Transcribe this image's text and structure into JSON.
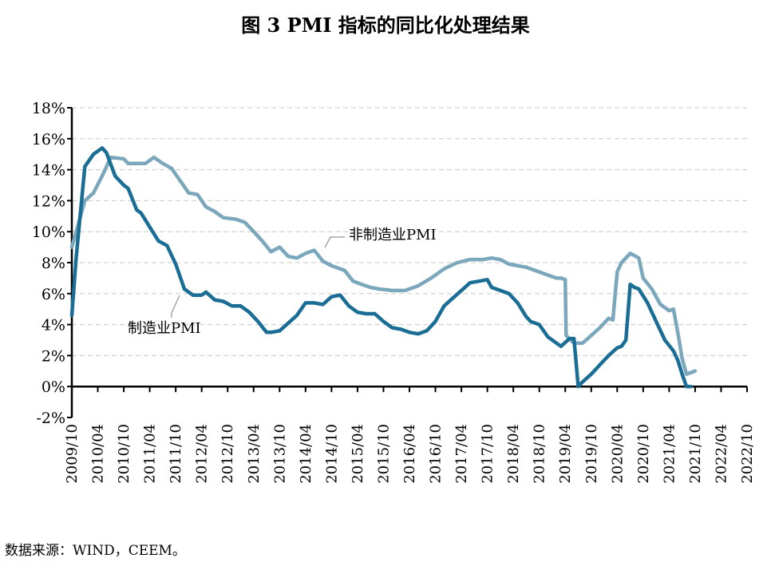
{
  "chart_data": {
    "type": "line",
    "title": "图 3 PMI 指标的同比化处理结果",
    "source": "数据来源：WIND，CEEM。",
    "ylim": [
      -2,
      18
    ],
    "yticks": [
      -2,
      0,
      2,
      4,
      6,
      8,
      10,
      12,
      14,
      16,
      18
    ],
    "ytick_labels": [
      "-2%",
      "0%",
      "2%",
      "4%",
      "6%",
      "8%",
      "10%",
      "12%",
      "14%",
      "16%",
      "18%"
    ],
    "x_start": "2009/10",
    "x_end": "2022/10",
    "xtick_labels": [
      "2009/10",
      "2010/04",
      "2010/10",
      "2011/04",
      "2011/10",
      "2012/04",
      "2012/10",
      "2013/04",
      "2013/10",
      "2014/04",
      "2014/10",
      "2015/04",
      "2015/10",
      "2016/04",
      "2016/10",
      "2017/04",
      "2017/10",
      "2018/04",
      "2018/10",
      "2019/04",
      "2019/10",
      "2020/04",
      "2020/10",
      "2021/04",
      "2021/10",
      "2022/04",
      "2022/10"
    ],
    "grid": true,
    "series": [
      {
        "name": "非制造业PMI",
        "color": "#7BA7BC",
        "label": "非制造业PMI",
        "points": [
          [
            0,
            9.0
          ],
          [
            3,
            12.0
          ],
          [
            5,
            12.5
          ],
          [
            7,
            13.6
          ],
          [
            9,
            14.8
          ],
          [
            12,
            14.7
          ],
          [
            13,
            14.4
          ],
          [
            15,
            14.4
          ],
          [
            17,
            14.4
          ],
          [
            19,
            14.8
          ],
          [
            21,
            14.4
          ],
          [
            23,
            14.1
          ],
          [
            25,
            13.3
          ],
          [
            27,
            12.5
          ],
          [
            29,
            12.4
          ],
          [
            31,
            11.6
          ],
          [
            33,
            11.3
          ],
          [
            35,
            10.9
          ],
          [
            38,
            10.8
          ],
          [
            40,
            10.6
          ],
          [
            42,
            10.0
          ],
          [
            44,
            9.4
          ],
          [
            46,
            8.7
          ],
          [
            48,
            9.0
          ],
          [
            50,
            8.4
          ],
          [
            52,
            8.3
          ],
          [
            54,
            8.6
          ],
          [
            56,
            8.8
          ],
          [
            58,
            8.1
          ],
          [
            60,
            7.8
          ],
          [
            63,
            7.5
          ],
          [
            65,
            6.8
          ],
          [
            67,
            6.6
          ],
          [
            69,
            6.4
          ],
          [
            71,
            6.3
          ],
          [
            74,
            6.2
          ],
          [
            77,
            6.2
          ],
          [
            80,
            6.5
          ],
          [
            83,
            7.0
          ],
          [
            86,
            7.6
          ],
          [
            89,
            8.0
          ],
          [
            92,
            8.2
          ],
          [
            95,
            8.2
          ],
          [
            97,
            8.3
          ],
          [
            99,
            8.2
          ],
          [
            101,
            7.9
          ],
          [
            103,
            7.8
          ],
          [
            105,
            7.7
          ],
          [
            107,
            7.5
          ],
          [
            109,
            7.3
          ],
          [
            111,
            7.1
          ],
          [
            112,
            7.0
          ],
          [
            113,
            7.0
          ],
          [
            114,
            6.9
          ],
          [
            114.2,
            3.3
          ],
          [
            116,
            2.8
          ],
          [
            118,
            2.8
          ],
          [
            120,
            3.3
          ],
          [
            122,
            3.8
          ],
          [
            124,
            4.4
          ],
          [
            125,
            4.3
          ],
          [
            126,
            7.4
          ],
          [
            127,
            8.0
          ],
          [
            129,
            8.6
          ],
          [
            131,
            8.3
          ],
          [
            132,
            7.0
          ],
          [
            134,
            6.3
          ],
          [
            136,
            5.3
          ],
          [
            138,
            4.9
          ],
          [
            139,
            5.0
          ],
          [
            140,
            3.5
          ],
          [
            141,
            1.8
          ],
          [
            142,
            0.8
          ],
          [
            144,
            1.0
          ]
        ]
      },
      {
        "name": "制造业PMI",
        "color": "#1A6E96",
        "label": "制造业PMI",
        "points": [
          [
            0,
            4.6
          ],
          [
            1,
            8.3
          ],
          [
            3,
            14.2
          ],
          [
            5,
            15.0
          ],
          [
            7,
            15.4
          ],
          [
            8,
            15.1
          ],
          [
            10,
            13.6
          ],
          [
            12,
            13.0
          ],
          [
            13,
            12.8
          ],
          [
            15,
            11.4
          ],
          [
            16,
            11.2
          ],
          [
            18,
            10.3
          ],
          [
            20,
            9.4
          ],
          [
            22,
            9.1
          ],
          [
            24,
            7.9
          ],
          [
            26,
            6.3
          ],
          [
            28,
            5.9
          ],
          [
            30,
            5.9
          ],
          [
            31,
            6.1
          ],
          [
            33,
            5.6
          ],
          [
            35,
            5.5
          ],
          [
            37,
            5.2
          ],
          [
            39,
            5.2
          ],
          [
            41,
            4.8
          ],
          [
            43,
            4.2
          ],
          [
            45,
            3.5
          ],
          [
            46,
            3.5
          ],
          [
            48,
            3.6
          ],
          [
            50,
            4.1
          ],
          [
            52,
            4.6
          ],
          [
            54,
            5.4
          ],
          [
            56,
            5.4
          ],
          [
            58,
            5.3
          ],
          [
            60,
            5.8
          ],
          [
            62,
            5.9
          ],
          [
            64,
            5.2
          ],
          [
            66,
            4.8
          ],
          [
            68,
            4.7
          ],
          [
            70,
            4.7
          ],
          [
            72,
            4.2
          ],
          [
            74,
            3.8
          ],
          [
            76,
            3.7
          ],
          [
            78,
            3.5
          ],
          [
            80,
            3.4
          ],
          [
            82,
            3.6
          ],
          [
            84,
            4.2
          ],
          [
            86,
            5.2
          ],
          [
            88,
            5.7
          ],
          [
            90,
            6.2
          ],
          [
            92,
            6.7
          ],
          [
            94,
            6.8
          ],
          [
            96,
            6.9
          ],
          [
            97,
            6.4
          ],
          [
            99,
            6.2
          ],
          [
            101,
            6.0
          ],
          [
            103,
            5.4
          ],
          [
            105,
            4.5
          ],
          [
            106,
            4.2
          ],
          [
            108,
            4.0
          ],
          [
            110,
            3.2
          ],
          [
            112,
            2.8
          ],
          [
            113,
            2.6
          ],
          [
            115,
            3.1
          ],
          [
            116,
            3.1
          ],
          [
            117,
            0.0
          ],
          [
            118,
            0.3
          ],
          [
            120,
            0.8
          ],
          [
            122,
            1.4
          ],
          [
            124,
            2.0
          ],
          [
            126,
            2.5
          ],
          [
            127,
            2.6
          ],
          [
            128,
            3.0
          ],
          [
            129,
            6.6
          ],
          [
            130,
            6.4
          ],
          [
            131,
            6.3
          ],
          [
            133,
            5.4
          ],
          [
            135,
            4.2
          ],
          [
            137,
            3.0
          ],
          [
            139,
            2.3
          ],
          [
            140,
            1.7
          ],
          [
            141,
            0.8
          ],
          [
            142,
            0.0
          ],
          [
            143,
            0.0
          ]
        ]
      }
    ]
  }
}
